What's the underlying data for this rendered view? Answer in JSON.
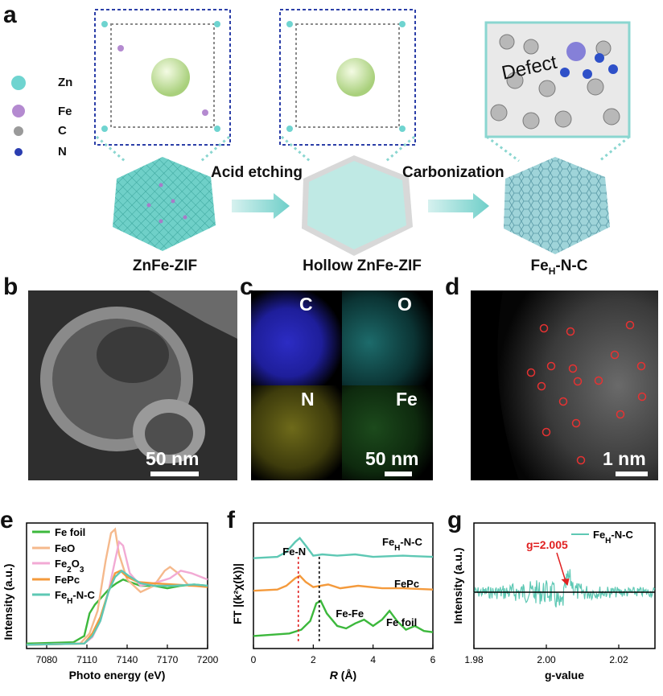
{
  "panels": {
    "a": "a",
    "b": "b",
    "c": "c",
    "d": "d",
    "e": "e",
    "f": "f",
    "g": "g"
  },
  "panel_a": {
    "legend": [
      {
        "label": "Zn",
        "color": "#6fd4d0"
      },
      {
        "label": "Fe",
        "color": "#b48ad0"
      },
      {
        "label": "C",
        "color": "#9a9a9a"
      },
      {
        "label": "N",
        "color": "#2a3db0"
      }
    ],
    "step1": "Acid etching",
    "step2": "Carbonization",
    "defect": "Defect",
    "captions": [
      "ZnFe-ZIF",
      "Hollow ZnFe-ZIF"
    ],
    "cap3_main": "Fe",
    "cap3_sub": "H",
    "cap3_tail": "-N-C"
  },
  "panel_b": {
    "scale": "50 nm"
  },
  "panel_c": {
    "labels": [
      "C",
      "O",
      "N",
      "Fe"
    ],
    "scale": "50 nm"
  },
  "panel_d": {
    "scale": "1 nm"
  },
  "chart_data": [
    {
      "type": "line",
      "panel": "e",
      "xlabel": "Photo energy (eV)",
      "ylabel": "Intensity (a.u.)",
      "xlim": [
        7065,
        7200
      ],
      "xticks": [
        7080,
        7110,
        7140,
        7170,
        7200
      ],
      "series": [
        {
          "name": "Fe foil",
          "color": "#3cb83c",
          "points": [
            [
              7065,
              0.04
            ],
            [
              7100,
              0.05
            ],
            [
              7108,
              0.1
            ],
            [
              7112,
              0.28
            ],
            [
              7116,
              0.35
            ],
            [
              7122,
              0.42
            ],
            [
              7127,
              0.48
            ],
            [
              7132,
              0.52
            ],
            [
              7137,
              0.55
            ],
            [
              7142,
              0.53
            ],
            [
              7150,
              0.5
            ],
            [
              7160,
              0.5
            ],
            [
              7170,
              0.48
            ],
            [
              7180,
              0.5
            ],
            [
              7190,
              0.51
            ],
            [
              7200,
              0.5
            ]
          ]
        },
        {
          "name": "FeO",
          "color": "#f5b98c",
          "points": [
            [
              7065,
              0.03
            ],
            [
              7105,
              0.04
            ],
            [
              7112,
              0.12
            ],
            [
              7118,
              0.3
            ],
            [
              7124,
              0.7
            ],
            [
              7128,
              0.92
            ],
            [
              7131,
              0.95
            ],
            [
              7134,
              0.75
            ],
            [
              7140,
              0.55
            ],
            [
              7150,
              0.45
            ],
            [
              7160,
              0.5
            ],
            [
              7168,
              0.62
            ],
            [
              7172,
              0.65
            ],
            [
              7178,
              0.6
            ],
            [
              7186,
              0.5
            ],
            [
              7200,
              0.5
            ]
          ]
        },
        {
          "name": "Fe2O3",
          "color": "#f2aad4",
          "points": [
            [
              7065,
              0.03
            ],
            [
              7108,
              0.04
            ],
            [
              7114,
              0.09
            ],
            [
              7120,
              0.22
            ],
            [
              7126,
              0.45
            ],
            [
              7131,
              0.7
            ],
            [
              7134,
              0.85
            ],
            [
              7137,
              0.82
            ],
            [
              7142,
              0.6
            ],
            [
              7150,
              0.5
            ],
            [
              7160,
              0.52
            ],
            [
              7172,
              0.56
            ],
            [
              7180,
              0.62
            ],
            [
              7188,
              0.6
            ],
            [
              7200,
              0.55
            ]
          ]
        },
        {
          "name": "FePc",
          "color": "#f49a3c",
          "points": [
            [
              7065,
              0.03
            ],
            [
              7108,
              0.04
            ],
            [
              7114,
              0.12
            ],
            [
              7120,
              0.25
            ],
            [
              7126,
              0.45
            ],
            [
              7131,
              0.6
            ],
            [
              7135,
              0.62
            ],
            [
              7140,
              0.57
            ],
            [
              7148,
              0.53
            ],
            [
              7160,
              0.52
            ],
            [
              7175,
              0.51
            ],
            [
              7190,
              0.5
            ],
            [
              7200,
              0.49
            ]
          ]
        },
        {
          "name": "FeH-N-C",
          "color": "#5ec8b4",
          "points": [
            [
              7065,
              0.03
            ],
            [
              7108,
              0.04
            ],
            [
              7114,
              0.1
            ],
            [
              7120,
              0.22
            ],
            [
              7126,
              0.45
            ],
            [
              7131,
              0.57
            ],
            [
              7136,
              0.62
            ],
            [
              7141,
              0.58
            ],
            [
              7150,
              0.52
            ],
            [
              7160,
              0.5
            ],
            [
              7175,
              0.5
            ],
            [
              7190,
              0.51
            ],
            [
              7200,
              0.5
            ]
          ]
        }
      ]
    },
    {
      "type": "line",
      "panel": "f",
      "xlabel_main": "R",
      "xlabel_unit": " (Å)",
      "ylabel": "FT |(k²χ(k))|",
      "xlim": [
        0,
        6
      ],
      "xticks": [
        0,
        2,
        4,
        6
      ],
      "annotations": {
        "fen": "Fe-N",
        "fefe": "Fe-Fe",
        "fen_x": 1.5,
        "fefe_x": 2.2
      },
      "series": [
        {
          "name": "FeH-N-C",
          "label_main": "Fe",
          "label_sub": "H",
          "label_tail": "-N-C",
          "color": "#5ec8b4",
          "offset": 0.72,
          "points": [
            [
              0,
              0
            ],
            [
              0.8,
              0.01
            ],
            [
              1.1,
              0.05
            ],
            [
              1.4,
              0.13
            ],
            [
              1.55,
              0.16
            ],
            [
              1.75,
              0.1
            ],
            [
              2.0,
              0.02
            ],
            [
              2.3,
              0.03
            ],
            [
              2.8,
              0.02
            ],
            [
              3.4,
              0.03
            ],
            [
              4,
              0.01
            ],
            [
              5,
              0.02
            ],
            [
              6,
              0.01
            ]
          ]
        },
        {
          "name": "FePc",
          "color": "#f49a3c",
          "offset": 0.46,
          "points": [
            [
              0,
              0
            ],
            [
              0.8,
              0.01
            ],
            [
              1.1,
              0.04
            ],
            [
              1.4,
              0.1
            ],
            [
              1.55,
              0.12
            ],
            [
              1.75,
              0.07
            ],
            [
              2.0,
              0.03
            ],
            [
              2.5,
              0.05
            ],
            [
              2.9,
              0.02
            ],
            [
              3.5,
              0.04
            ],
            [
              4.3,
              0.02
            ],
            [
              5,
              0.02
            ],
            [
              6,
              0.01
            ]
          ]
        },
        {
          "name": "Fe foil",
          "color": "#3cb83c",
          "offset": 0.1,
          "points": [
            [
              0,
              0
            ],
            [
              1.2,
              0.02
            ],
            [
              1.6,
              0.05
            ],
            [
              1.9,
              0.12
            ],
            [
              2.1,
              0.26
            ],
            [
              2.25,
              0.28
            ],
            [
              2.45,
              0.18
            ],
            [
              2.8,
              0.08
            ],
            [
              3.1,
              0.06
            ],
            [
              3.4,
              0.1
            ],
            [
              3.7,
              0.13
            ],
            [
              4.0,
              0.08
            ],
            [
              4.3,
              0.13
            ],
            [
              4.55,
              0.2
            ],
            [
              4.8,
              0.12
            ],
            [
              5.1,
              0.05
            ],
            [
              5.4,
              0.08
            ],
            [
              5.7,
              0.04
            ],
            [
              6,
              0.03
            ]
          ]
        }
      ]
    },
    {
      "type": "line",
      "panel": "g",
      "xlabel": "g-value",
      "ylabel": "Intensity (a.u.)",
      "xlim": [
        1.98,
        2.03
      ],
      "xticks": [
        "1.98",
        "2.00",
        "2.02"
      ],
      "annotation": "g=2.005",
      "annotation_g": 2.005,
      "series": [
        {
          "name": "FeH-N-C",
          "label_main": "Fe",
          "label_sub": "H",
          "label_tail": "-N-C",
          "color": "#5ec8b4"
        }
      ]
    }
  ]
}
